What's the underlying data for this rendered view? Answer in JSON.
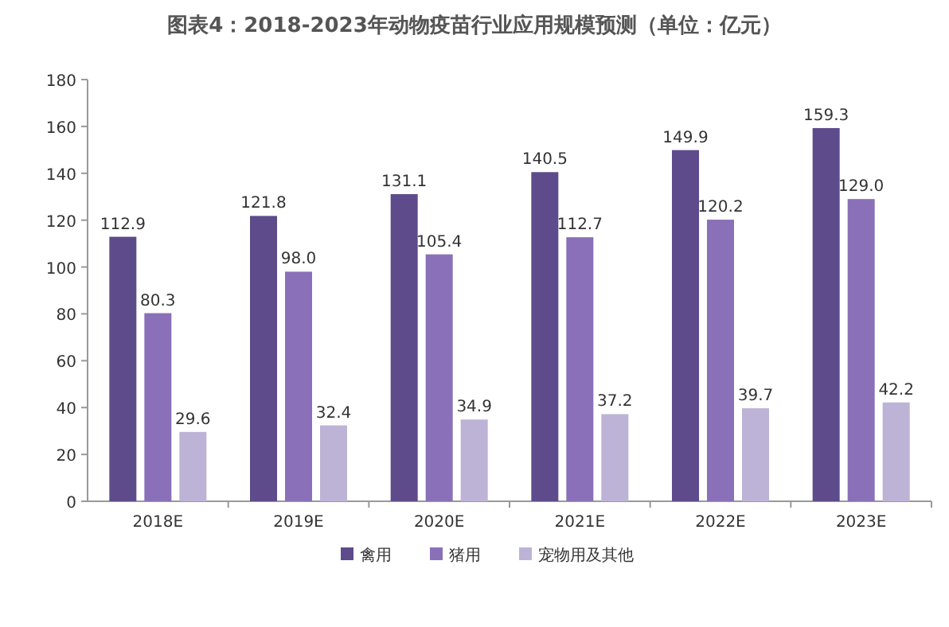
{
  "chart_data": {
    "type": "bar",
    "title": "图表4：2018-2023年动物疫苗行业应用规模预测（单位：亿元）",
    "categories": [
      "2018E",
      "2019E",
      "2020E",
      "2021E",
      "2022E",
      "2023E"
    ],
    "series": [
      {
        "name": "禽用",
        "color": "#5e4b8b",
        "values": [
          112.9,
          121.8,
          131.1,
          140.5,
          149.9,
          159.3
        ]
      },
      {
        "name": "猪用",
        "color": "#8a70b8",
        "values": [
          80.3,
          98.0,
          105.4,
          112.7,
          120.2,
          129.0
        ]
      },
      {
        "name": "宠物用及其他",
        "color": "#bdb3d6",
        "values": [
          29.6,
          32.4,
          34.9,
          37.2,
          39.7,
          42.2
        ]
      }
    ],
    "ylim": [
      0,
      180
    ],
    "yticks": [
      0,
      20,
      40,
      60,
      80,
      100,
      120,
      140,
      160,
      180
    ],
    "value_labels": [
      [
        "112.9",
        "121.8",
        "131.1",
        "140.5",
        "149.9",
        "159.3"
      ],
      [
        "80.3",
        "98.0",
        "105.4",
        "112.7",
        "120.2",
        "129.0"
      ],
      [
        "29.6",
        "32.4",
        "34.9",
        "37.2",
        "39.7",
        "42.2"
      ]
    ],
    "legend": "bottom"
  }
}
